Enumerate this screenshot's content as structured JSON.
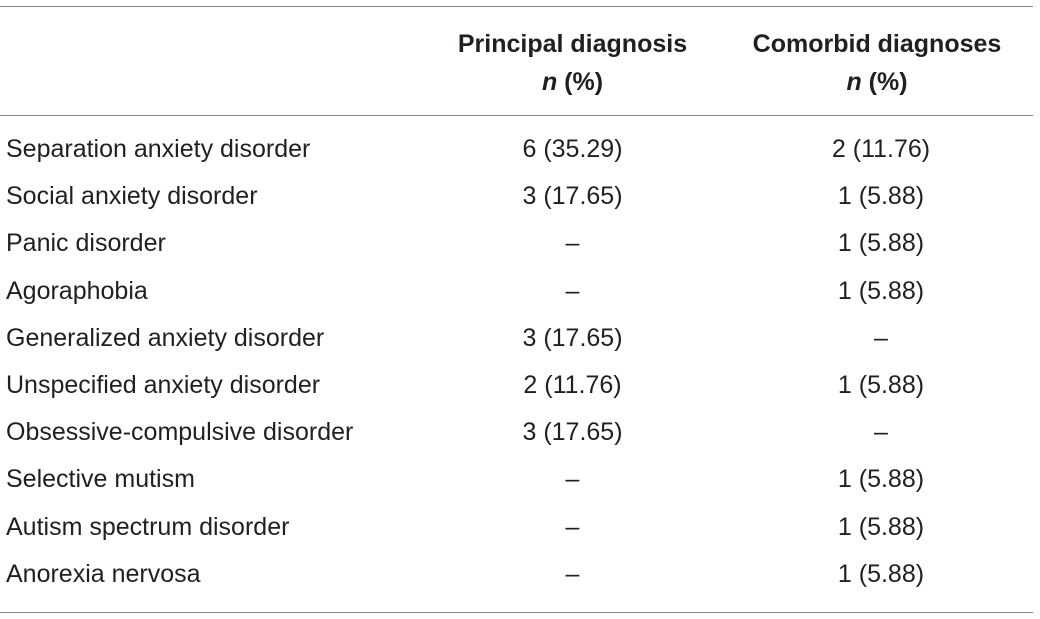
{
  "table": {
    "headers": {
      "label": "",
      "principal_title": "Principal diagnosis",
      "comorbid_title": "Comorbid diagnoses",
      "n_symbol": "n",
      "percent_symbol": "(%)"
    },
    "rows": [
      {
        "label": "Separation anxiety disorder",
        "principal": "6 (35.29)",
        "comorbid": "2 (11.76)"
      },
      {
        "label": "Social anxiety disorder",
        "principal": "3 (17.65)",
        "comorbid": "1 (5.88)"
      },
      {
        "label": "Panic disorder",
        "principal": "–",
        "comorbid": "1 (5.88)"
      },
      {
        "label": "Agoraphobia",
        "principal": "–",
        "comorbid": "1 (5.88)"
      },
      {
        "label": "Generalized anxiety disorder",
        "principal": "3 (17.65)",
        "comorbid": "–"
      },
      {
        "label": "Unspecified anxiety disorder",
        "principal": "2 (11.76)",
        "comorbid": "1 (5.88)"
      },
      {
        "label": "Obsessive-compulsive disorder",
        "principal": "3 (17.65)",
        "comorbid": "–"
      },
      {
        "label": "Selective mutism",
        "principal": "–",
        "comorbid": "1 (5.88)"
      },
      {
        "label": "Autism spectrum disorder",
        "principal": "–",
        "comorbid": "1 (5.88)"
      },
      {
        "label": "Anorexia nervosa",
        "principal": "–",
        "comorbid": "1 (5.88)"
      }
    ]
  }
}
